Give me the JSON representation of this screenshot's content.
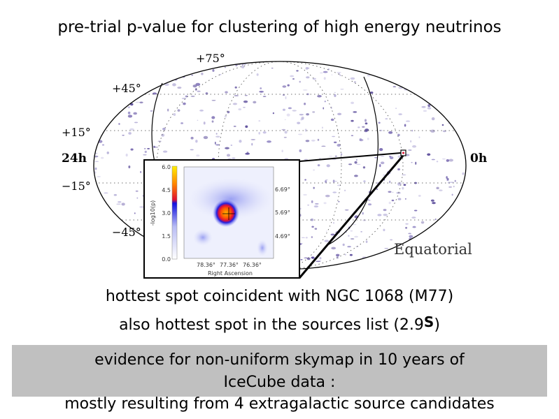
{
  "title": "pre-trial p-value for clustering of high energy neutrinos",
  "skymap": {
    "dec_labels": [
      "+75°",
      "+45°",
      "+15°",
      "−15°",
      "−45°"
    ],
    "ra_left": "24h",
    "ra_right": "0h",
    "projection_label": "Equatorial"
  },
  "inset": {
    "colorbar_ticks": [
      "6.0",
      "4.5",
      "3.0",
      "1.5",
      "0.0"
    ],
    "colorbar_label": "-log10(p)",
    "dec_ticks": [
      "6.69°",
      "5.69°",
      "4.69°"
    ],
    "ra_ticks": [
      "78.36°",
      "77.36°",
      "76.36°"
    ],
    "xlabel": "Right Ascension"
  },
  "line1": "hottest spot coincident with NGC 1068 (M77)",
  "line2_prefix": "also hottest spot in the sources list (2.9",
  "line2_sigma": "S",
  "line2_suffix": ")",
  "band": {
    "line1": "evidence for non-uniform skymap in 10 years of",
    "line2": "IceCube data :",
    "line3": "mostly resulting from 4 extragalactic source candidates"
  }
}
